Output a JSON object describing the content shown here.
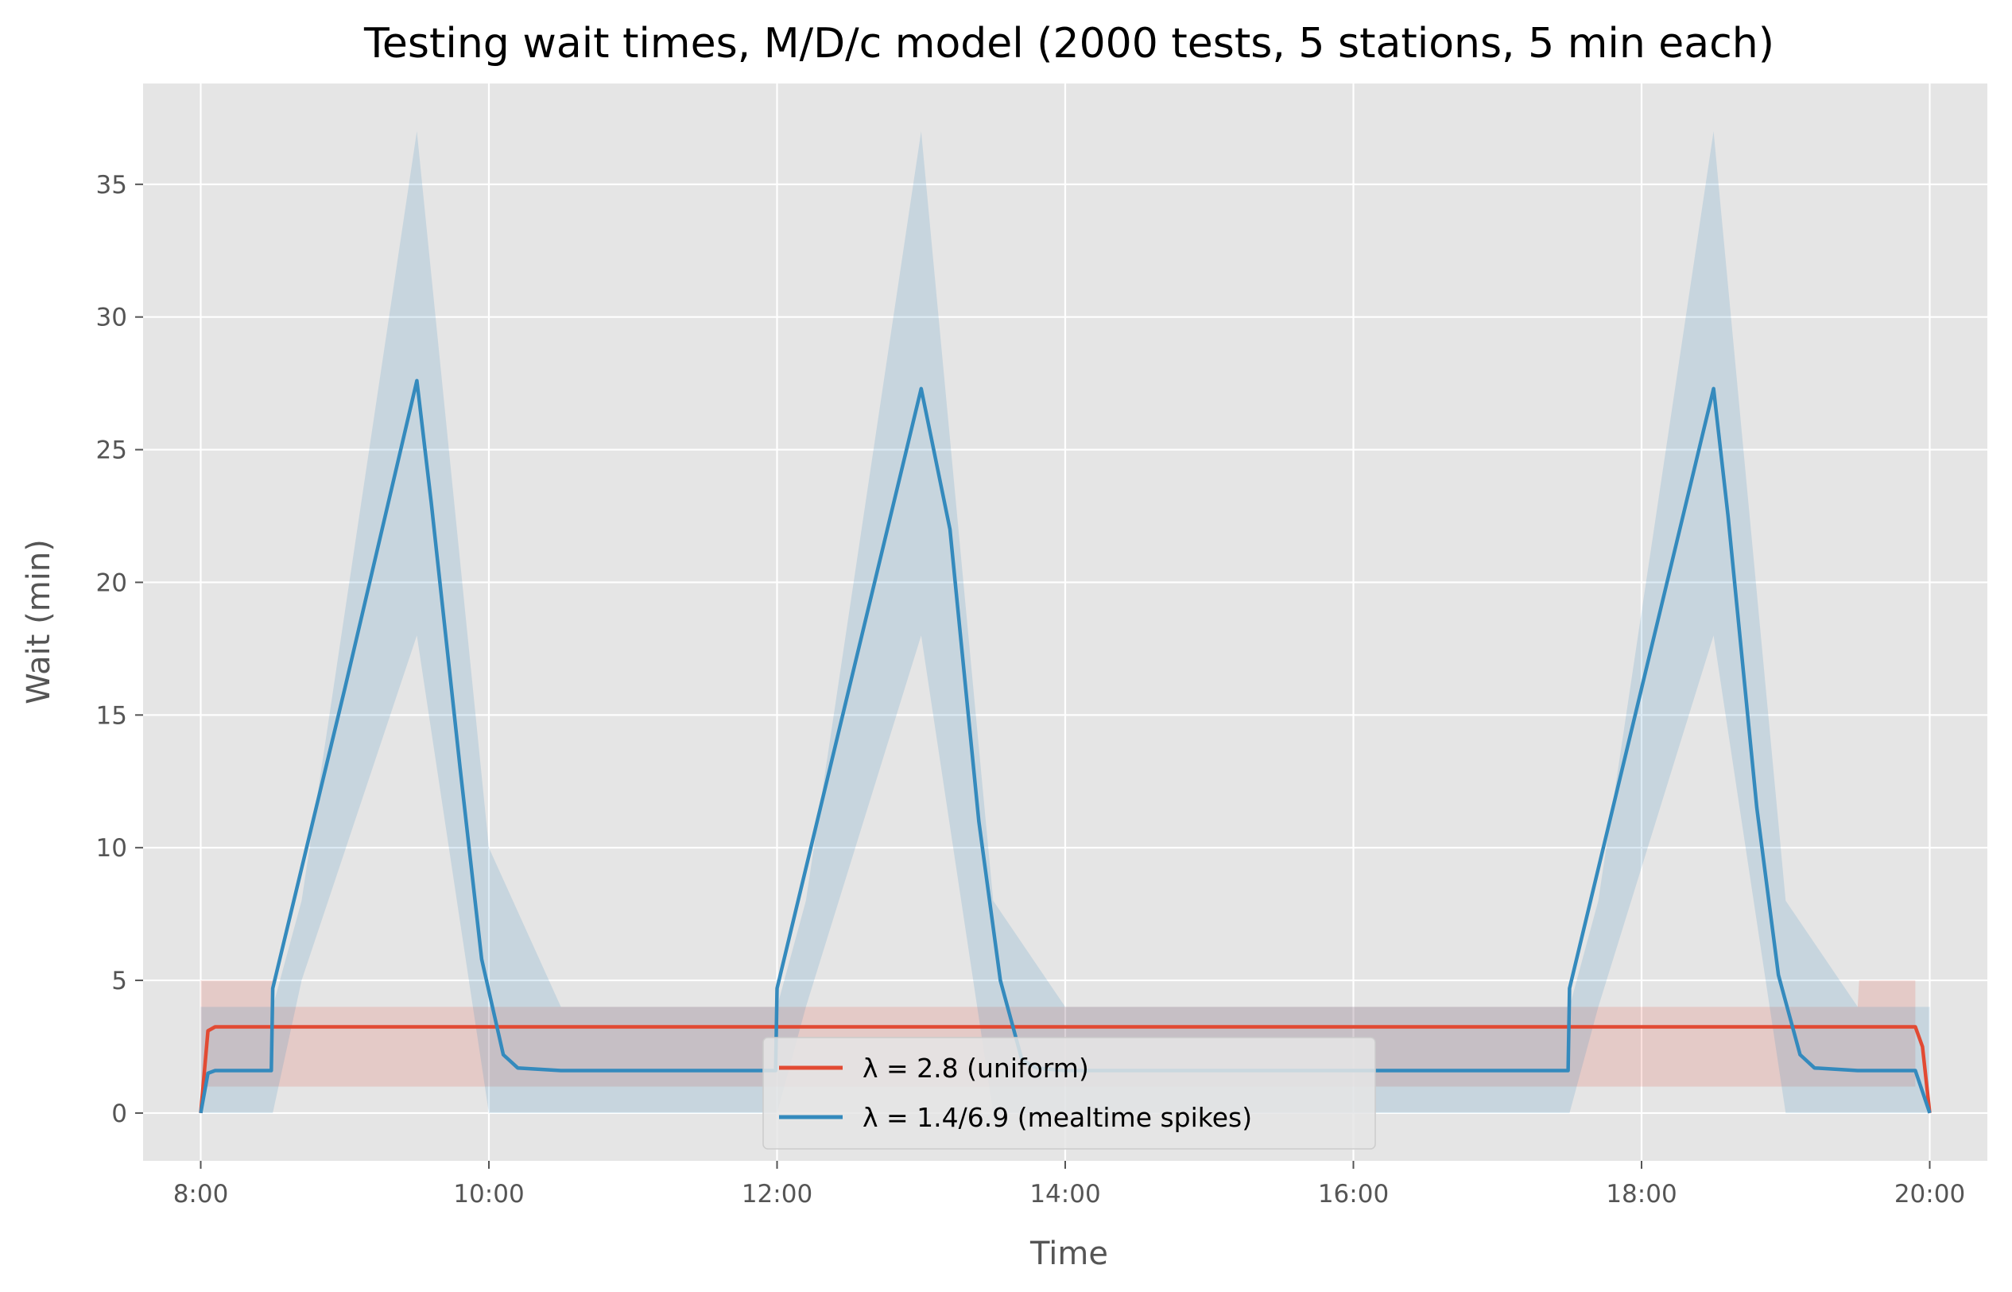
{
  "chart_data": {
    "type": "line",
    "title": "Testing wait times, M/D/c model (2000 tests, 5 stations, 5 min each)",
    "xlabel": "Time",
    "ylabel": "Wait (min)",
    "x_unit": "hours",
    "xlim": [
      7.6,
      20.4
    ],
    "ylim": [
      -1.8,
      38.8
    ],
    "xticks": [
      8,
      10,
      12,
      14,
      16,
      18,
      20
    ],
    "xtick_labels": [
      "8:00",
      "10:00",
      "12:00",
      "14:00",
      "16:00",
      "18:00",
      "20:00"
    ],
    "yticks": [
      0,
      5,
      10,
      15,
      20,
      25,
      30,
      35
    ],
    "ytick_labels": [
      "0",
      "5",
      "10",
      "15",
      "20",
      "25",
      "30",
      "35"
    ],
    "grid": true,
    "legend_position": "bottom-center",
    "series": [
      {
        "name": "λ = 2.8 (uniform)",
        "color": "#E24A33",
        "x": [
          8.0,
          8.05,
          8.1,
          8.5,
          10.0,
          12.0,
          14.0,
          16.0,
          18.0,
          19.9,
          19.95,
          20.0
        ],
        "y": [
          0,
          3.1,
          3.25,
          3.25,
          3.25,
          3.25,
          3.25,
          3.25,
          3.25,
          3.25,
          2.5,
          0
        ],
        "band_x": [
          8.0,
          8.5,
          8.51,
          19.5,
          19.51,
          19.9
        ],
        "band_low": [
          1.0,
          1.0,
          1.0,
          1.0,
          1.0,
          1.0
        ],
        "band_high": [
          5.0,
          5.0,
          4.0,
          4.0,
          5.0,
          5.0
        ]
      },
      {
        "name": "λ = 1.4/6.9 (mealtime spikes)",
        "color": "#348ABD",
        "x": [
          8.0,
          8.05,
          8.1,
          8.49,
          8.5,
          9.0,
          9.5,
          9.6,
          9.8,
          9.95,
          10.1,
          10.2,
          10.5,
          11.99,
          12.0,
          12.5,
          13.0,
          13.2,
          13.4,
          13.55,
          13.7,
          13.8,
          14.0,
          16.0,
          17.49,
          17.5,
          18.0,
          18.5,
          18.6,
          18.8,
          18.95,
          19.1,
          19.2,
          19.5,
          19.9,
          20.0
        ],
        "y": [
          0,
          1.5,
          1.6,
          1.6,
          4.7,
          16.0,
          27.6,
          23.0,
          13.0,
          5.8,
          2.2,
          1.7,
          1.6,
          1.6,
          4.7,
          16.0,
          27.3,
          22.0,
          11.0,
          5.0,
          2.0,
          1.7,
          1.6,
          1.6,
          1.6,
          4.7,
          16.0,
          27.3,
          22.5,
          11.5,
          5.2,
          2.2,
          1.7,
          1.6,
          1.6,
          0
        ],
        "band_x": [
          8.0,
          8.5,
          8.7,
          9.5,
          10.0,
          10.5,
          12.0,
          12.2,
          13.0,
          13.5,
          14.0,
          17.5,
          17.7,
          18.5,
          19.0,
          19.5,
          20.0
        ],
        "band_low": [
          0,
          0,
          5.0,
          18.0,
          0,
          0,
          0,
          4.0,
          18.0,
          0,
          0,
          0,
          4.0,
          18.0,
          0,
          0,
          0
        ],
        "band_high": [
          4.0,
          4.0,
          8.0,
          37.0,
          10.0,
          4.0,
          4.0,
          8.0,
          37.0,
          8.0,
          4.0,
          4.0,
          8.0,
          37.0,
          8.0,
          4.0,
          4.0
        ]
      }
    ]
  }
}
